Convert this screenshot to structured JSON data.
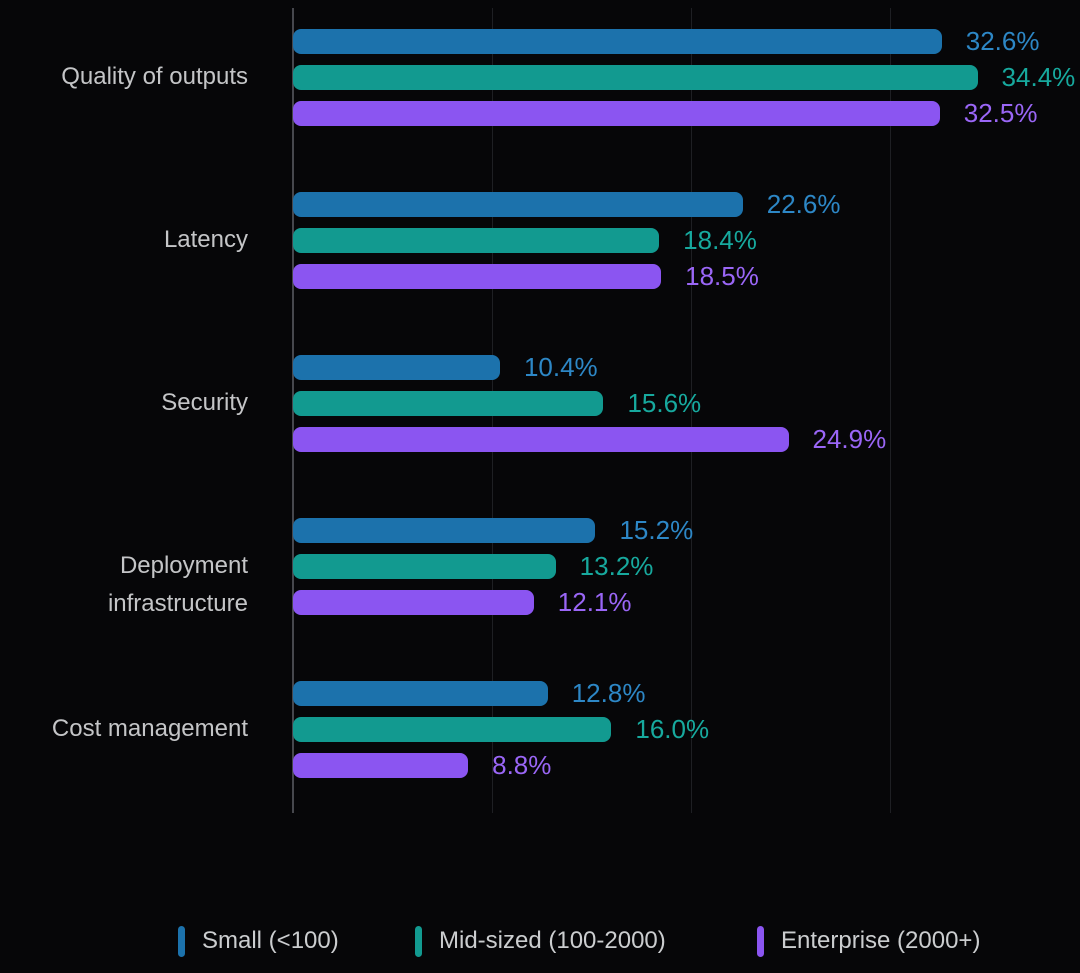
{
  "chart_data": {
    "type": "bar",
    "orientation": "horizontal",
    "title": "",
    "xlabel": "",
    "ylabel": "",
    "xlim": [
      0,
      40
    ],
    "gridline_step": 10,
    "grid": true,
    "legend_position": "bottom",
    "value_suffix": "%",
    "categories": [
      "Quality of outputs",
      "Latency",
      "Security",
      "Deployment infrastructure",
      "Cost management"
    ],
    "series": [
      {
        "name": "Small (<100)",
        "color": "#1c72ac",
        "label_color": "#2d87c6",
        "values": [
          32.6,
          22.6,
          10.4,
          15.2,
          12.8
        ]
      },
      {
        "name": "Mid-sized (100-2000)",
        "color": "#129a90",
        "label_color": "#17a99e",
        "values": [
          34.4,
          18.4,
          15.6,
          13.2,
          16.0
        ]
      },
      {
        "name": "Enterprise (2000+)",
        "color": "#8b55f1",
        "label_color": "#9a66f6",
        "values": [
          32.5,
          18.5,
          24.9,
          12.1,
          8.8
        ]
      }
    ]
  },
  "colors": {
    "background": "#060608",
    "axis_line": "#46474d",
    "gridline": "#1e1f23",
    "category_text": "#c4c5c7",
    "legend_text": "#cbcdcf"
  }
}
